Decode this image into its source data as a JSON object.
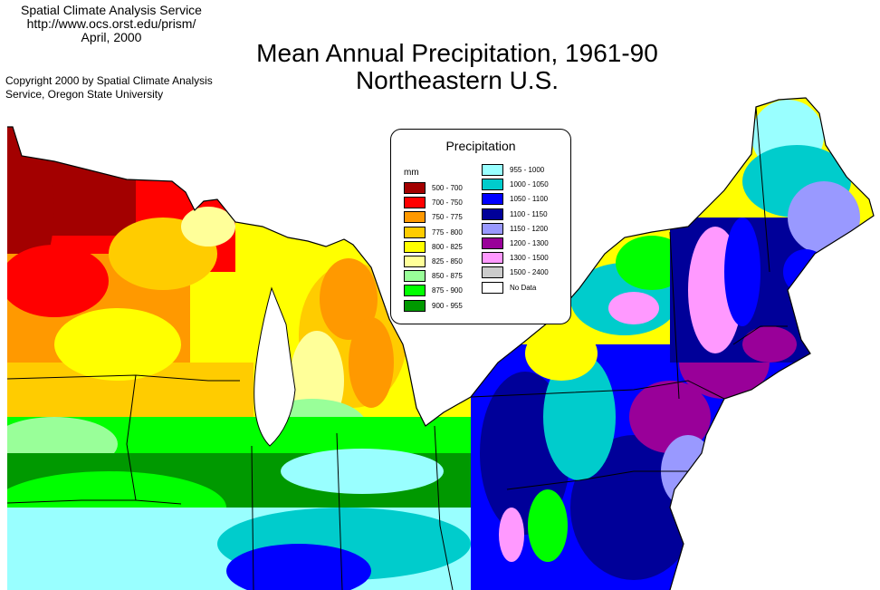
{
  "credit": {
    "line1": "Spatial Climate Analysis Service",
    "line2": "http://www.ocs.orst.edu/prism/",
    "line3": "April, 2000"
  },
  "copyright": {
    "line1": "Copyright 2000 by Spatial Climate Analysis",
    "line2": "Service, Oregon State University"
  },
  "title": {
    "line1": "Mean Annual Precipitation, 1961-90",
    "line2": "Northeastern U.S."
  },
  "legend": {
    "title": "Precipitation",
    "unit": "mm",
    "items": [
      {
        "label": "500 - 700",
        "color": "#a30000"
      },
      {
        "label": "700 - 750",
        "color": "#ff0000"
      },
      {
        "label": "750 - 775",
        "color": "#ff9900"
      },
      {
        "label": "775 - 800",
        "color": "#ffcc00"
      },
      {
        "label": "800 - 825",
        "color": "#ffff00"
      },
      {
        "label": "825 - 850",
        "color": "#ffff99"
      },
      {
        "label": "850 - 875",
        "color": "#99ff99"
      },
      {
        "label": "875 - 900",
        "color": "#00ff00"
      },
      {
        "label": "900 - 955",
        "color": "#009900"
      },
      {
        "label": "955 - 1000",
        "color": "#99ffff"
      },
      {
        "label": "1000 - 1050",
        "color": "#00cccc"
      },
      {
        "label": "1050 - 1100",
        "color": "#0000ff"
      },
      {
        "label": "1100 - 1150",
        "color": "#000099"
      },
      {
        "label": "1150 - 1200",
        "color": "#9999ff"
      },
      {
        "label": "1200 - 1300",
        "color": "#990099"
      },
      {
        "label": "1300 - 1500",
        "color": "#ff99ff"
      },
      {
        "label": "1500 - 2400",
        "color": "#cccccc"
      },
      {
        "label": "No Data",
        "color": "#ffffff"
      }
    ]
  }
}
